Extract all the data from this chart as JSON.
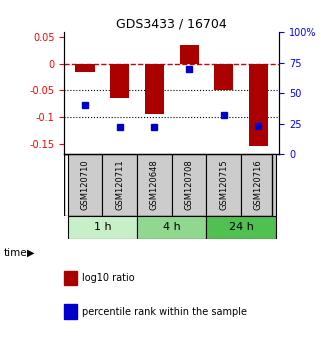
{
  "title": "GDS3433 / 16704",
  "samples": [
    "GSM120710",
    "GSM120711",
    "GSM120648",
    "GSM120708",
    "GSM120715",
    "GSM120716"
  ],
  "groups": [
    {
      "label": "1 h",
      "indices": [
        0,
        1
      ],
      "color": "#c8f0c8"
    },
    {
      "label": "4 h",
      "indices": [
        2,
        3
      ],
      "color": "#90d890"
    },
    {
      "label": "24 h",
      "indices": [
        4,
        5
      ],
      "color": "#50c050"
    }
  ],
  "log10_ratio": [
    -0.015,
    -0.065,
    -0.095,
    0.035,
    -0.05,
    -0.155
  ],
  "percentile_rank": [
    40,
    22,
    22,
    70,
    32,
    23
  ],
  "ylim_left": [
    -0.17,
    0.06
  ],
  "ylim_right": [
    0,
    100
  ],
  "yticks_left": [
    0.05,
    0,
    -0.05,
    -0.1,
    -0.15
  ],
  "yticks_right": [
    100,
    75,
    50,
    25,
    0
  ],
  "ytick_labels_right": [
    "100%",
    "75",
    "50",
    "25",
    "0"
  ],
  "bar_color": "#aa0000",
  "dot_color": "#0000cc",
  "bar_width": 0.55,
  "zero_line_color": "#cc0000",
  "grid_line_color": "#000000",
  "sample_box_color": "#cccccc",
  "legend_bar_label": "log10 ratio",
  "legend_dot_label": "percentile rank within the sample"
}
